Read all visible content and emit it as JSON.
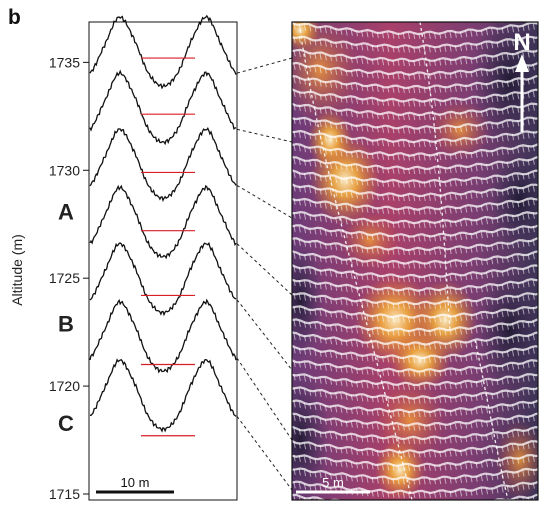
{
  "panel_label": "b",
  "chart_data": {
    "type": "line",
    "ylabel": "Altitude (m)",
    "ylim": [
      1715,
      1736.5
    ],
    "yticks": [
      1715,
      1720,
      1725,
      1730,
      1735
    ],
    "ytick_labels": [
      "1715",
      "1720",
      "1725",
      "1730",
      "1735"
    ],
    "profile_markers": [
      {
        "label": "A",
        "altitude": 1728.1
      },
      {
        "label": "B",
        "altitude": 1722.9
      },
      {
        "label": "C",
        "altitude": 1718.3
      }
    ],
    "profiles": [
      {
        "base_altitude": 1734.5,
        "water_level": 1735.2
      },
      {
        "base_altitude": 1731.9,
        "water_level": 1732.6
      },
      {
        "base_altitude": 1729.3,
        "water_level": 1729.9
      },
      {
        "base_altitude": 1726.6,
        "water_level": 1727.2
      },
      {
        "base_altitude": 1724.0,
        "water_level": 1724.2
      },
      {
        "base_altitude": 1721.3,
        "water_level": 1721.0
      },
      {
        "base_altitude": 1718.6,
        "water_level": 1717.7
      }
    ],
    "profile_shape_m": [
      0,
      1.3,
      2.6,
      1.6,
      0,
      -0.6,
      0,
      1.6,
      2.6,
      1.3,
      0
    ],
    "scale_bar_profiles": "10 m",
    "scale_bar_map": "5 m",
    "north_label": "N"
  },
  "colors": {
    "profile": "#111111",
    "water_level": "#d81f26",
    "map_low": "#4a3f72",
    "map_mid": "#a8366b",
    "map_high": "#f6b13a",
    "map_peak": "#fff2c8",
    "grid": "#ffffff"
  }
}
